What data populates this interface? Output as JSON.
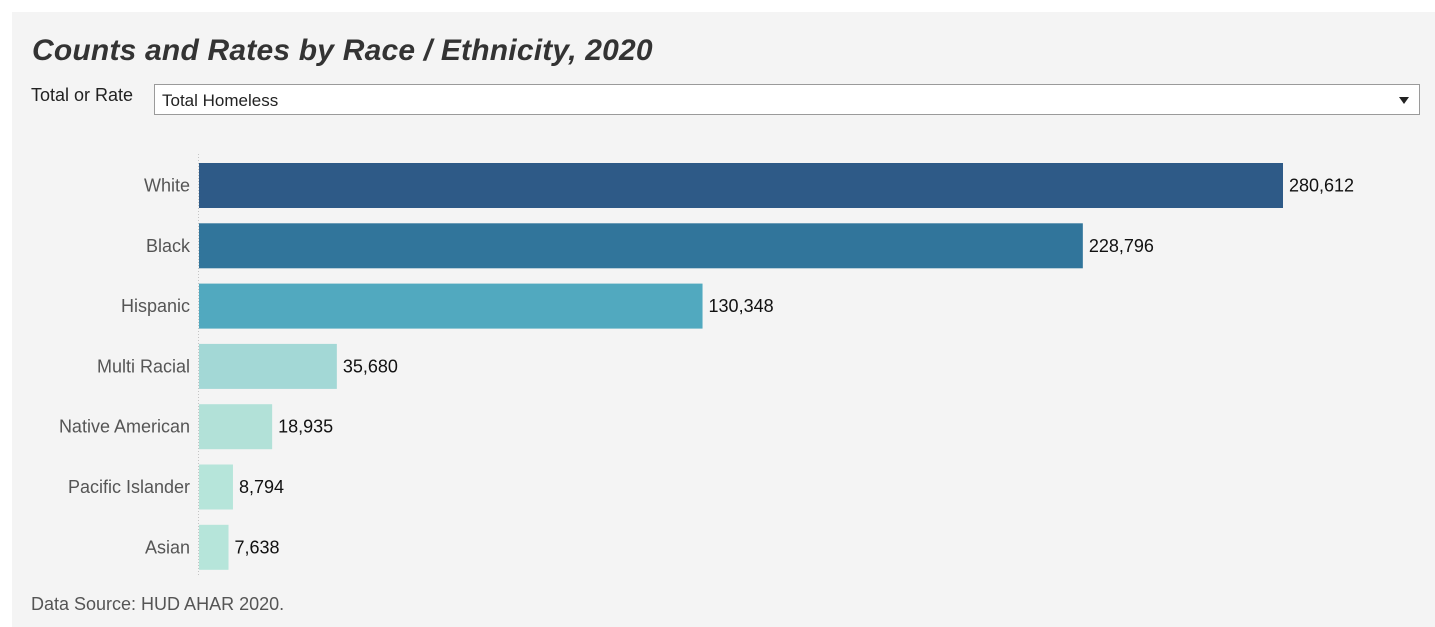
{
  "title": "Counts and Rates by Race / Ethnicity, 2020",
  "filter": {
    "label": "Total or Rate",
    "selected": "Total Homeless"
  },
  "source": "Data Source: HUD AHAR 2020.",
  "chart_data": {
    "type": "bar",
    "orientation": "horizontal",
    "title": "Counts and Rates by Race / Ethnicity, 2020",
    "categories": [
      "White",
      "Black",
      "Hispanic",
      "Multi Racial",
      "Native American",
      "Pacific Islander",
      "Asian"
    ],
    "values": [
      280612,
      228796,
      130348,
      35680,
      18935,
      8794,
      7638
    ],
    "data_labels": [
      "280,612",
      "228,796",
      "130,348",
      "35,680",
      "18,935",
      "8,794",
      "7,638"
    ],
    "colors": [
      "#2e5a87",
      "#31759b",
      "#51a9bf",
      "#a3d8d6",
      "#b2e1d8",
      "#b6e5da",
      "#b6e5da"
    ],
    "xlim": [
      0,
      280612
    ],
    "grid": false
  }
}
